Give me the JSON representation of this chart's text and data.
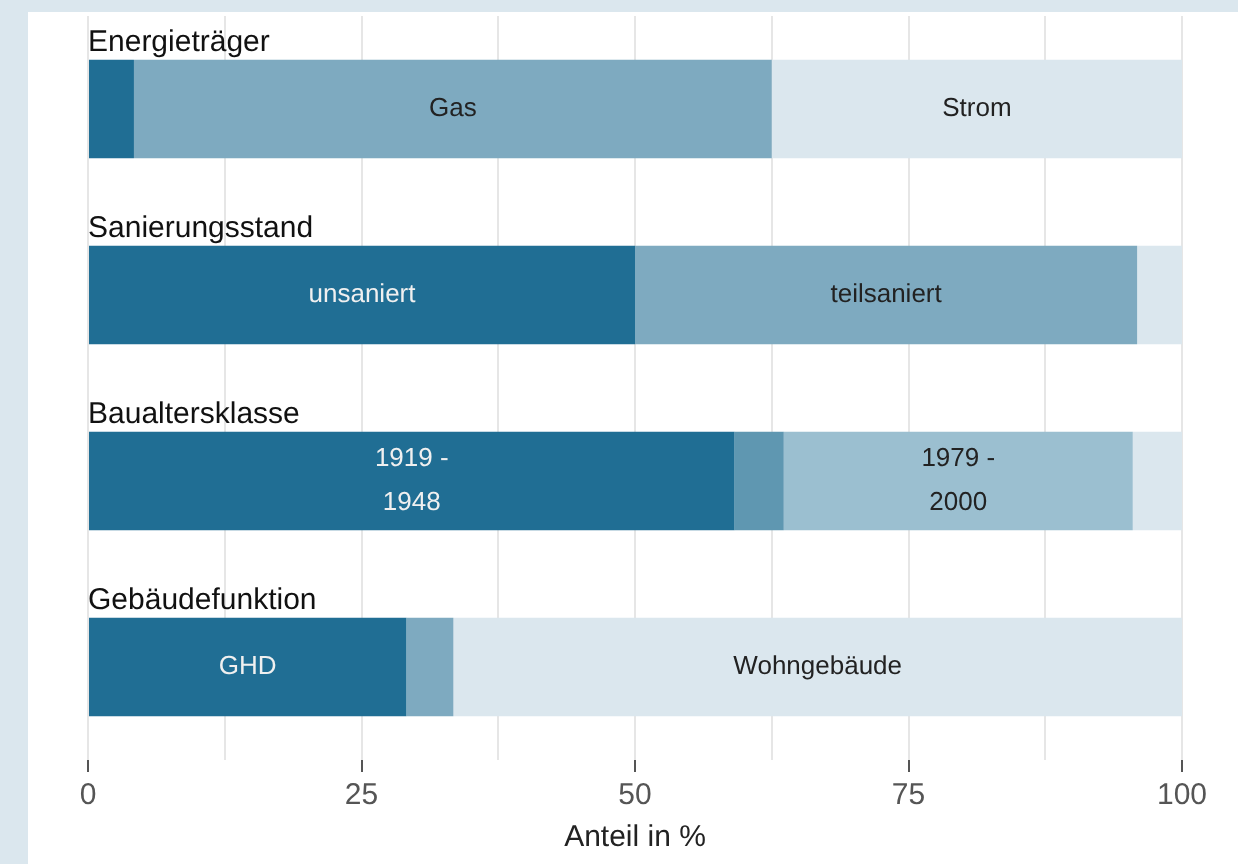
{
  "chart_data": {
    "type": "bar",
    "orientation": "horizontal",
    "stacked": true,
    "categories": [
      "Energieträger",
      "Sanierungsstand",
      "Baualtersklasse",
      "Gebäudefunktion"
    ],
    "series": [
      {
        "colors": [
          "#206e94",
          "#206e94",
          "#206e94",
          "#206e94"
        ],
        "values": [
          4.2,
          50.0,
          59.1,
          29.1
        ]
      },
      {
        "colors": [
          "#7eaac0",
          "#7eaac0",
          "#5f97b1",
          "#7eaac0"
        ],
        "values": [
          58.3,
          45.9,
          4.5,
          4.3
        ]
      },
      {
        "colors": [
          "#dbe7ee",
          "#dbe7ee",
          "#9bbfd0",
          "#dbe7ee"
        ],
        "values": [
          37.5,
          4.1,
          31.9,
          66.6
        ]
      },
      {
        "colors": [
          "#dbe7ee",
          "#dbe7ee",
          "#dbe7ee",
          "#dbe7ee"
        ],
        "values": [
          null,
          null,
          4.5,
          null
        ]
      }
    ],
    "annotations": [
      "Gas",
      "Strom",
      "unsaniert",
      "teilsaniert",
      "1919 -\n1948",
      "1979 -\n2000",
      "GHD",
      "Wohngebäude"
    ],
    "xlabel": "Anteil in %",
    "xlim": [
      0,
      100
    ],
    "xticks": [
      0,
      {
        "value": 12.5,
        "label": null
      },
      25,
      {
        "value": 37.5,
        "label": null
      },
      50,
      {
        "value": 62.5,
        "label": null
      },
      75,
      {
        "value": 87.5,
        "label": null
      },
      100
    ],
    "grid": "x",
    "legend": false
  }
}
